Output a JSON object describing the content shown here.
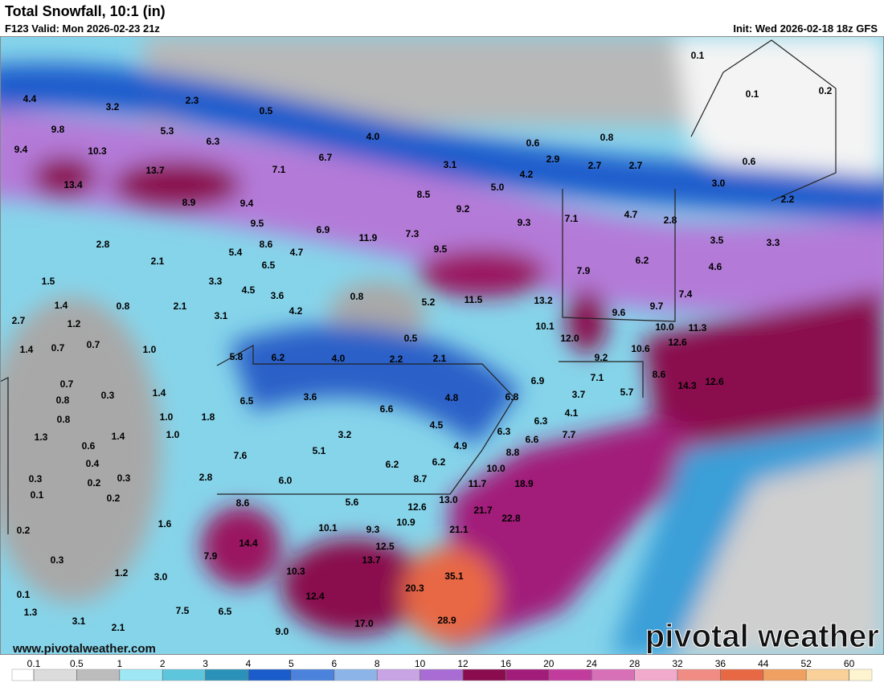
{
  "header": {
    "title": "Total Snowfall, 10:1 (in)",
    "valid": "F123 Valid: Mon 2026-02-23 21z",
    "init": "Init: Wed 2026-02-18 18z GFS"
  },
  "map": {
    "labels": [
      "0.1",
      "4.4",
      "3.2",
      "2.3",
      "0.5",
      "0.1",
      "0.2",
      "9.8",
      "5.3",
      "4.0",
      "6.3",
      "0.6",
      "0.8",
      "9.4",
      "10.3",
      "2.9",
      "0.6",
      "7.1",
      "6.7",
      "3.1",
      "2.7",
      "2.7",
      "13.7",
      "4.2",
      "13.4",
      "5.0",
      "3.0",
      "8.5",
      "2.2",
      "8.9",
      "9.4",
      "9.2",
      "7.1",
      "4.7",
      "9.3",
      "2.8",
      "9.5",
      "6.9",
      "7.3",
      "11.9",
      "3.5",
      "3.3",
      "8.6",
      "2.8",
      "9.5",
      "5.4",
      "4.7",
      "2.1",
      "6.2",
      "6.5",
      "4.6",
      "7.9",
      "1.5",
      "3.3",
      "4.5",
      "3.6",
      "0.8",
      "11.5",
      "13.2",
      "7.4",
      "1.4",
      "0.8",
      "2.1",
      "5.2",
      "9.7",
      "4.2",
      "9.6",
      "3.1",
      "2.7",
      "1.2",
      "10.1",
      "10.0",
      "11.3",
      "0.5",
      "12.0",
      "12.6",
      "1.4",
      "0.7",
      "0.7",
      "1.0",
      "10.6",
      "5.8",
      "6.2",
      "4.0",
      "2.2",
      "2.1",
      "9.2",
      "0.7",
      "7.1",
      "8.6",
      "14.3",
      "12.6",
      "0.8",
      "0.3",
      "1.4",
      "3.6",
      "6.9",
      "6.8",
      "3.7",
      "5.7",
      "4.8",
      "6.5",
      "6.6",
      "4.1",
      "0.8",
      "1.0",
      "1.8",
      "4.5",
      "6.3",
      "1.0",
      "3.2",
      "6.3",
      "7.7",
      "6.6",
      "1.3",
      "1.4",
      "0.6",
      "4.9",
      "5.1",
      "8.8",
      "7.6",
      "0.4",
      "6.2",
      "6.2",
      "10.0",
      "2.8",
      "0.3",
      "0.2",
      "0.3",
      "8.7",
      "6.0",
      "18.9",
      "11.7",
      "0.1",
      "0.2",
      "8.6",
      "5.6",
      "13.0",
      "12.6",
      "21.7",
      "22.8",
      "1.6",
      "0.2",
      "10.1",
      "9.3",
      "10.9",
      "21.1",
      "14.4",
      "12.5",
      "0.3",
      "7.9",
      "13.7",
      "1.2",
      "3.0",
      "10.3",
      "35.1",
      "0.1",
      "12.4",
      "20.3",
      "1.3",
      "7.5",
      "6.5",
      "3.1",
      "2.1",
      "17.0",
      "28.9",
      "9.0"
    ]
  },
  "footer": {
    "website": "www.pivotalweather.com",
    "logo": "pivotal weather"
  },
  "colorbar": {
    "ticks": [
      0.1,
      0.5,
      1,
      2,
      3,
      4,
      5,
      6,
      8,
      10,
      12,
      16,
      20,
      24,
      28,
      32,
      36,
      44,
      52,
      60
    ],
    "colors": [
      "#ffffff",
      "#dcdcdc",
      "#bcbcbc",
      "#9ee8f6",
      "#5ec6dc",
      "#2a92b8",
      "#1a5ccc",
      "#4a82dc",
      "#8cb4e8",
      "#c8a4e4",
      "#a86cd4",
      "#8a0c4e",
      "#a21c7a",
      "#c23c9e",
      "#d870b8",
      "#f2aacc",
      "#f08c84",
      "#e86844",
      "#f0a060",
      "#f8d098",
      "#fff4d0"
    ]
  }
}
